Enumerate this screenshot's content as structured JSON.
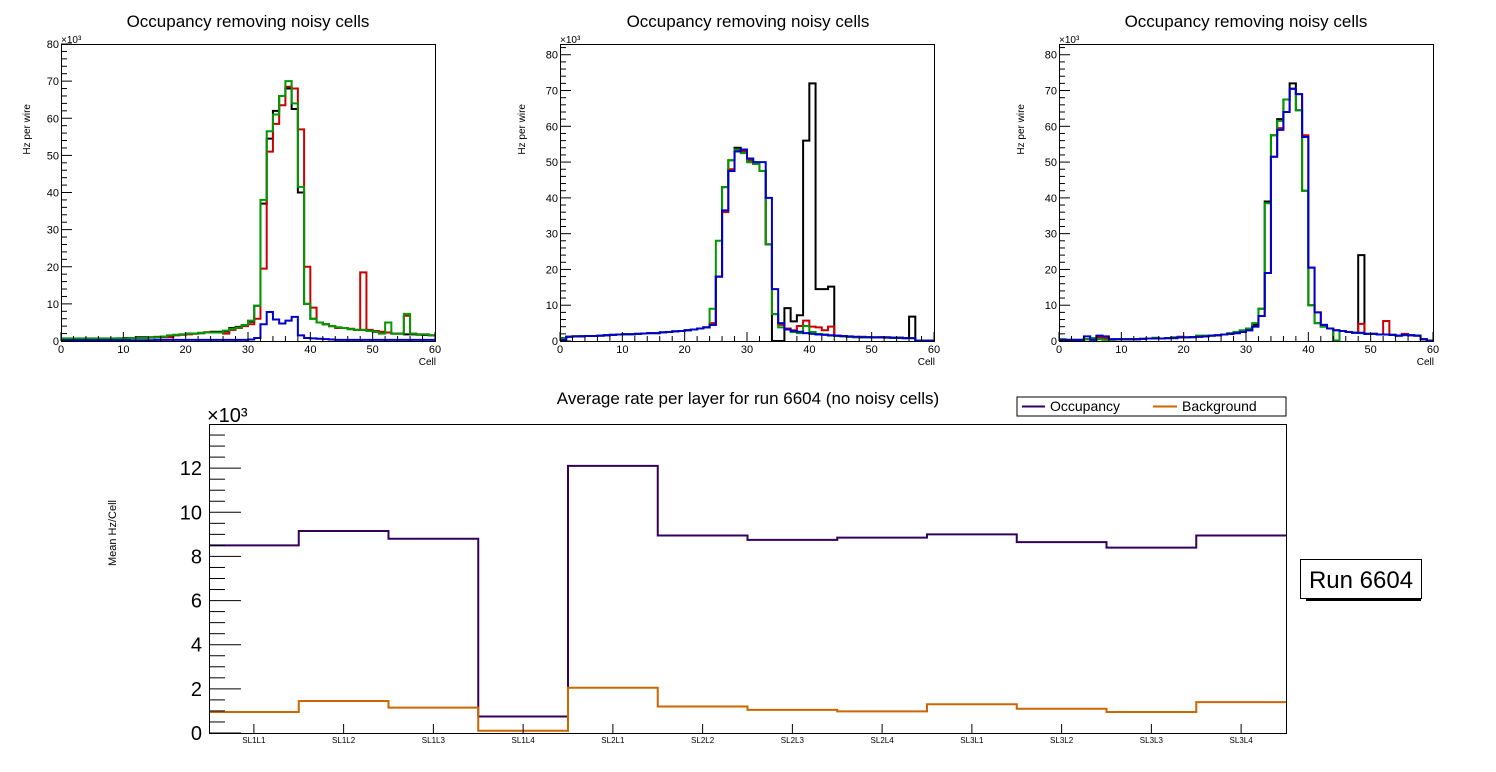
{
  "chart_data": [
    {
      "type": "line",
      "style": "step-histogram",
      "title": "Occupancy removing noisy cells",
      "xlabel": "Cell",
      "ylabel": "Hz per wire",
      "y_multiplier": "×10³",
      "xlim": [
        0,
        60
      ],
      "ylim": [
        0,
        80
      ],
      "xticks": [
        0,
        10,
        20,
        30,
        40,
        50,
        60
      ],
      "yticks": [
        0,
        10,
        20,
        30,
        40,
        50,
        60,
        70,
        80
      ],
      "grid": false,
      "series": [
        {
          "name": "black",
          "color": "#000000",
          "values": [
            0.5,
            0.5,
            0.5,
            0.5,
            0.5,
            0.5,
            0.5,
            0.5,
            0.5,
            0.7,
            0.8,
            0.8,
            1.0,
            1.0,
            1.0,
            1.1,
            1.2,
            1.3,
            1.6,
            1.7,
            2.0,
            2.0,
            2.1,
            2.3,
            2.5,
            2.5,
            2.6,
            3.5,
            3.8,
            4.3,
            5.2,
            9.5,
            37,
            54.5,
            62,
            66,
            68,
            62.5,
            40,
            10,
            6,
            5,
            4.5,
            4,
            3.6,
            3.5,
            3.2,
            3,
            3,
            2.8,
            2.5,
            2.3,
            2.3,
            2.0,
            2.0,
            1.8,
            1.8,
            1.7,
            1.6,
            1.5
          ]
        },
        {
          "name": "red",
          "color": "#cc0000",
          "values": [
            0.5,
            0.5,
            0.5,
            0.5,
            0.5,
            0.5,
            0.5,
            0.5,
            0.5,
            0.4,
            0.6,
            0.8,
            0.8,
            0.8,
            0.9,
            1.0,
            1.0,
            1.0,
            1.5,
            1.8,
            1.8,
            2.0,
            2.2,
            2.4,
            2.3,
            2.3,
            2.0,
            3.0,
            3.5,
            4.0,
            4.5,
            6.0,
            19.5,
            51,
            58.5,
            63.5,
            68.5,
            68,
            57,
            20,
            9,
            5,
            4.5,
            4,
            3.5,
            3.5,
            3.3,
            3,
            18.5,
            3,
            2.7,
            2.5,
            2.3,
            2.0,
            2.0,
            6.8,
            2.0,
            1.8,
            1.8,
            1.5
          ]
        },
        {
          "name": "green",
          "color": "#009900",
          "values": [
            0.7,
            0.7,
            0.7,
            0.7,
            0.7,
            0.7,
            0.7,
            0.7,
            0.7,
            0.7,
            0.7,
            0.8,
            0.8,
            0.8,
            0.9,
            1.0,
            1.2,
            1.5,
            1.7,
            1.8,
            2.0,
            2.0,
            2.2,
            2.3,
            2.3,
            2.3,
            2.8,
            3.3,
            3.6,
            4.3,
            5.5,
            9.5,
            38,
            56.5,
            61,
            66,
            70,
            64,
            41.5,
            10,
            6,
            5,
            4.5,
            4,
            3.7,
            3.5,
            3.2,
            3,
            3,
            2.7,
            2.5,
            2.0,
            5.0,
            2.0,
            2.0,
            7.3,
            2.0,
            1.8,
            1.8,
            1.5
          ]
        },
        {
          "name": "blue",
          "color": "#0000cc",
          "values": [
            0.2,
            0.2,
            0.2,
            0.2,
            0.2,
            0.2,
            0.2,
            0.2,
            0.2,
            0.2,
            0.2,
            0.2,
            0.2,
            0.2,
            0.2,
            0.3,
            0.3,
            0.3,
            0.3,
            0.3,
            0.3,
            0.3,
            0.3,
            0.3,
            0.3,
            0.3,
            0.3,
            0.3,
            0.3,
            0.3,
            0.4,
            0.8,
            4.5,
            7.8,
            5.8,
            4.7,
            5.5,
            6.5,
            1.5,
            0.8,
            0.7,
            0.6,
            0.5,
            0.4,
            0.3,
            0.3,
            0.3,
            0.3,
            0.3,
            0.3,
            0.3,
            0.3,
            0.3,
            0.3,
            0.3,
            0.3,
            0.3,
            0.3,
            0.3,
            0.3
          ]
        }
      ]
    },
    {
      "type": "line",
      "style": "step-histogram",
      "title": "Occupancy removing noisy cells",
      "xlabel": "Cell",
      "ylabel": "Hz per wire",
      "y_multiplier": "×10³",
      "xlim": [
        0,
        60
      ],
      "ylim": [
        0,
        83
      ],
      "xticks": [
        0,
        10,
        20,
        30,
        40,
        50,
        60
      ],
      "yticks": [
        0,
        10,
        20,
        30,
        40,
        50,
        60,
        70,
        80
      ],
      "grid": false,
      "series": [
        {
          "name": "black",
          "color": "#000000",
          "values": [
            0.8,
            1.2,
            1.3,
            1.3,
            1.4,
            1.4,
            1.5,
            1.6,
            1.7,
            1.8,
            1.9,
            1.9,
            2.0,
            2.1,
            2.2,
            2.2,
            2.4,
            2.5,
            2.7,
            2.8,
            3.0,
            3.2,
            3.5,
            3.8,
            4.5,
            18,
            43,
            50.5,
            54,
            53,
            50,
            49.5,
            47.5,
            27,
            0,
            0,
            9.2,
            5.5,
            7.2,
            56,
            72,
            14.5,
            14.5,
            15.2,
            1.5,
            1.3,
            1.2,
            1.1,
            1.0,
            1.0,
            1.0,
            1.0,
            1.0,
            0.9,
            0.9,
            0.8,
            6.8,
            0.1,
            0.1,
            0.1
          ]
        },
        {
          "name": "red",
          "color": "#cc0000",
          "values": [
            0.8,
            1.2,
            1.3,
            1.3,
            1.4,
            1.4,
            1.5,
            1.6,
            1.7,
            1.8,
            1.9,
            1.9,
            2.0,
            2.1,
            2.2,
            2.2,
            2.4,
            2.5,
            2.7,
            2.8,
            3.0,
            3.2,
            3.5,
            3.8,
            5.0,
            18,
            36,
            48,
            53,
            53,
            50.5,
            49.5,
            47.5,
            27,
            7.5,
            4.5,
            3.5,
            3.0,
            4.2,
            5.7,
            4.0,
            3.8,
            3.0,
            4.0,
            1.5,
            1.3,
            1.2,
            1.1,
            1.2,
            1.0,
            1.0,
            1.1,
            1.0,
            0.9,
            0.9,
            0.8,
            0.8,
            0.1,
            0.1,
            0.1
          ]
        },
        {
          "name": "green",
          "color": "#009900",
          "values": [
            0.8,
            1.2,
            1.3,
            1.4,
            1.4,
            1.4,
            1.5,
            1.6,
            1.7,
            1.8,
            1.9,
            1.9,
            2.0,
            2.1,
            2.2,
            2.2,
            2.4,
            2.5,
            2.7,
            2.8,
            3.0,
            3.2,
            3.5,
            3.8,
            9.0,
            28,
            43,
            50.5,
            53.5,
            52.5,
            50,
            49.5,
            47.5,
            27,
            7.5,
            3.8,
            3.2,
            2.5,
            2.2,
            4.2,
            2.5,
            2.0,
            1.8,
            1.5,
            1.4,
            1.3,
            1.2,
            1.1,
            1.0,
            1.0,
            1.0,
            1.0,
            0.9,
            0.9,
            0.8,
            0.8,
            0.8,
            0.1,
            0.1,
            0.1
          ]
        },
        {
          "name": "blue",
          "color": "#0000cc",
          "values": [
            0.3,
            1.2,
            1.3,
            1.3,
            1.4,
            1.4,
            1.5,
            1.6,
            1.7,
            1.8,
            1.9,
            1.9,
            2.0,
            2.1,
            2.2,
            2.2,
            2.4,
            2.5,
            2.7,
            2.8,
            3.0,
            3.2,
            3.5,
            3.8,
            4.5,
            18,
            36.5,
            47.5,
            53,
            53.5,
            51,
            50,
            50,
            40,
            14.5,
            5,
            3.2,
            2.8,
            2.6,
            2.2,
            2.0,
            1.8,
            1.7,
            1.6,
            1.5,
            1.4,
            1.3,
            1.2,
            1.1,
            1.1,
            1.0,
            1.0,
            1.0,
            0.9,
            0.9,
            0.8,
            0.8,
            0.1,
            0.1,
            0.1
          ]
        }
      ]
    },
    {
      "type": "line",
      "style": "step-histogram",
      "title": "Occupancy removing noisy cells",
      "xlabel": "Cell",
      "ylabel": "Hz per wire",
      "y_multiplier": "×10³",
      "xlim": [
        0,
        60
      ],
      "ylim": [
        0,
        83
      ],
      "xticks": [
        0,
        10,
        20,
        30,
        40,
        50,
        60
      ],
      "yticks": [
        0,
        10,
        20,
        30,
        40,
        50,
        60,
        70,
        80
      ],
      "grid": false,
      "series": [
        {
          "name": "black",
          "color": "#000000",
          "values": [
            0.5,
            0.3,
            0.3,
            0.3,
            0.5,
            0.8,
            1.0,
            0.8,
            0.5,
            0.5,
            0.5,
            0.5,
            0.5,
            0.6,
            0.7,
            0.7,
            0.7,
            0.8,
            1.0,
            1.0,
            1.0,
            1.1,
            1.2,
            1.3,
            1.5,
            1.6,
            1.8,
            2.0,
            2.2,
            2.8,
            3.0,
            4.5,
            9.0,
            39,
            57.5,
            62,
            67.5,
            72,
            64.5,
            42,
            10,
            5,
            4,
            3.5,
            0.1,
            2.8,
            2.5,
            2.3,
            24,
            2.0,
            2.0,
            1.8,
            1.8,
            1.7,
            1.5,
            1.7,
            1.6,
            1.5,
            0.5,
            0.1
          ]
        },
        {
          "name": "red",
          "color": "#cc0000",
          "values": [
            0.3,
            0.3,
            0.0,
            0.0,
            0.5,
            0.5,
            1.0,
            0.8,
            0.5,
            0.5,
            0.5,
            0.5,
            0.5,
            0.6,
            0.7,
            0.7,
            0.7,
            0.8,
            0.8,
            1.2,
            1.0,
            1.1,
            1.2,
            1.3,
            1.5,
            1.6,
            1.8,
            2.0,
            2.2,
            2.5,
            3.0,
            4.0,
            7.0,
            19,
            51.5,
            59.5,
            64,
            70.5,
            69,
            57.5,
            20.5,
            8,
            4.5,
            3.5,
            3.0,
            2.8,
            2.5,
            2.3,
            4.8,
            2.0,
            2.0,
            1.8,
            5.6,
            1.7,
            1.5,
            2.0,
            1.6,
            1.5,
            0.5,
            0.1
          ]
        },
        {
          "name": "green",
          "color": "#009900",
          "values": [
            0.5,
            0.3,
            0.3,
            0.3,
            0.5,
            0.8,
            0.5,
            0.3,
            0.3,
            0.5,
            0.5,
            0.5,
            0.5,
            0.6,
            0.7,
            0.9,
            0.7,
            0.8,
            1.0,
            1.0,
            1.0,
            1.1,
            1.5,
            1.5,
            1.5,
            1.6,
            1.8,
            2.2,
            2.5,
            3.0,
            3.5,
            5.0,
            9.0,
            38.5,
            57.5,
            61.5,
            67.5,
            70.5,
            64.5,
            42,
            10,
            5,
            4,
            3.5,
            0.1,
            2.8,
            2.5,
            2.3,
            2.2,
            2.0,
            2.0,
            1.8,
            1.8,
            1.7,
            1.5,
            1.6,
            1.6,
            1.5,
            0.5,
            0.1
          ]
        },
        {
          "name": "blue",
          "color": "#0000cc",
          "values": [
            0.3,
            0.3,
            0.3,
            0.3,
            1.3,
            0.3,
            1.5,
            1.3,
            0.5,
            0.5,
            0.5,
            0.5,
            0.5,
            0.6,
            0.7,
            0.7,
            0.7,
            0.8,
            0.8,
            1.0,
            1.0,
            1.1,
            1.2,
            1.3,
            1.5,
            1.6,
            1.8,
            2.0,
            2.2,
            2.5,
            3.0,
            4.0,
            7.0,
            19,
            51.5,
            59,
            64,
            70.5,
            69,
            57,
            20.5,
            8,
            4.5,
            3.5,
            3.0,
            2.8,
            2.5,
            2.3,
            2.3,
            2.0,
            2.0,
            1.8,
            1.8,
            1.7,
            1.5,
            1.7,
            1.6,
            1.5,
            0.5,
            0.1
          ]
        }
      ]
    },
    {
      "type": "line",
      "style": "step-histogram",
      "title": "Average rate per layer for run 6604 (no noisy cells)",
      "xlabel": "",
      "ylabel": "Mean Hz/Cell",
      "y_multiplier": "×10³",
      "categories": [
        "SL1L1",
        "SL1L2",
        "SL1L3",
        "SL1L4",
        "SL2L1",
        "SL2L2",
        "SL2L3",
        "SL2L4",
        "SL3L1",
        "SL3L2",
        "SL3L3",
        "SL3L4"
      ],
      "ylim": [
        0,
        14
      ],
      "yticks": [
        0,
        2,
        4,
        6,
        8,
        10,
        12
      ],
      "grid": false,
      "legend": {
        "placement": "top-right",
        "entries": [
          "Occupancy",
          "Background"
        ]
      },
      "series": [
        {
          "name": "Occupancy",
          "color": "#33005e",
          "values": [
            8.5,
            9.15,
            8.8,
            0.75,
            12.1,
            8.95,
            8.75,
            8.85,
            9.0,
            8.65,
            8.4,
            8.95
          ]
        },
        {
          "name": "Background",
          "color": "#cc6600",
          "values": [
            0.95,
            1.45,
            1.15,
            0.1,
            2.05,
            1.2,
            1.05,
            0.98,
            1.3,
            1.1,
            0.95,
            1.4
          ]
        }
      ],
      "annotation": "Run 6604"
    }
  ]
}
